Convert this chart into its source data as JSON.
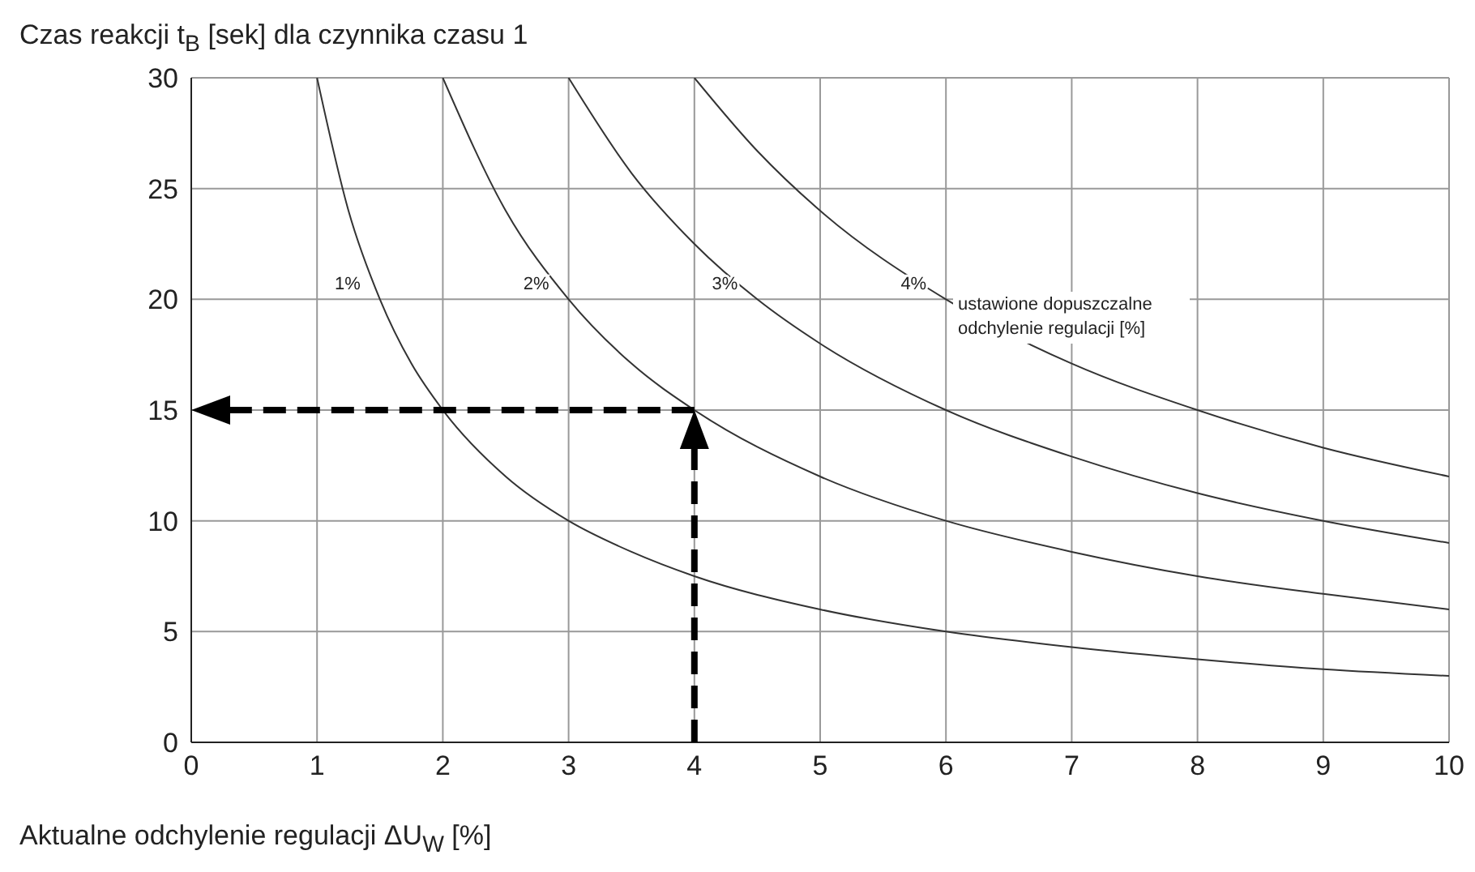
{
  "chart_data": {
    "type": "line",
    "ylabel": "Czas reakcji t$_{B}$ [sek] dla czynnika czasu 1",
    "xlabel": "Aktualne odchylenie regulacji ΔU$_{W}$ [%]",
    "xlim": [
      0,
      10
    ],
    "xticks": [
      0,
      1,
      2,
      3,
      4,
      5,
      6,
      7,
      8,
      9,
      10
    ],
    "ylim": [
      0,
      30
    ],
    "yticks": [
      0,
      5,
      10,
      15,
      20,
      25,
      30
    ],
    "grid": true,
    "marker": "none",
    "annotations": [
      "ustawione dopuszczalne odchylenie regulacji [%]"
    ],
    "ref_lines": [
      {
        "axis": "x",
        "value": 4,
        "color": "#000000",
        "line_style": "dashed"
      },
      {
        "axis": "y",
        "value": 15,
        "color": "#000000",
        "line_style": "dashed"
      }
    ],
    "series": [
      {
        "name": "1%",
        "color": "#333333",
        "x": [
          1,
          1.25,
          1.5,
          1.75,
          2,
          2.5,
          3,
          3.5,
          4,
          5,
          6,
          7,
          8,
          9,
          10
        ],
        "values": [
          30,
          24,
          20,
          17.1,
          15,
          12,
          10,
          8.6,
          7.5,
          6,
          5,
          4.3,
          3.75,
          3.3,
          3
        ]
      },
      {
        "name": "2%",
        "color": "#333333",
        "x": [
          2,
          2.5,
          3,
          3.5,
          4,
          5,
          6,
          7,
          8,
          9,
          10
        ],
        "values": [
          30,
          24,
          20,
          17.1,
          15,
          12,
          10,
          8.6,
          7.5,
          6.7,
          6
        ]
      },
      {
        "name": "3%",
        "color": "#333333",
        "x": [
          3,
          3.5,
          4,
          4.5,
          5,
          6,
          7,
          8,
          9,
          10
        ],
        "values": [
          30,
          25.7,
          22.5,
          20,
          18,
          15,
          12.9,
          11.25,
          10,
          9
        ]
      },
      {
        "name": "4%",
        "color": "#333333",
        "x": [
          4,
          4.5,
          5,
          6,
          7,
          8,
          9,
          10
        ],
        "values": [
          30,
          26.7,
          24,
          20,
          17.1,
          15,
          13.3,
          12
        ]
      }
    ]
  }
}
